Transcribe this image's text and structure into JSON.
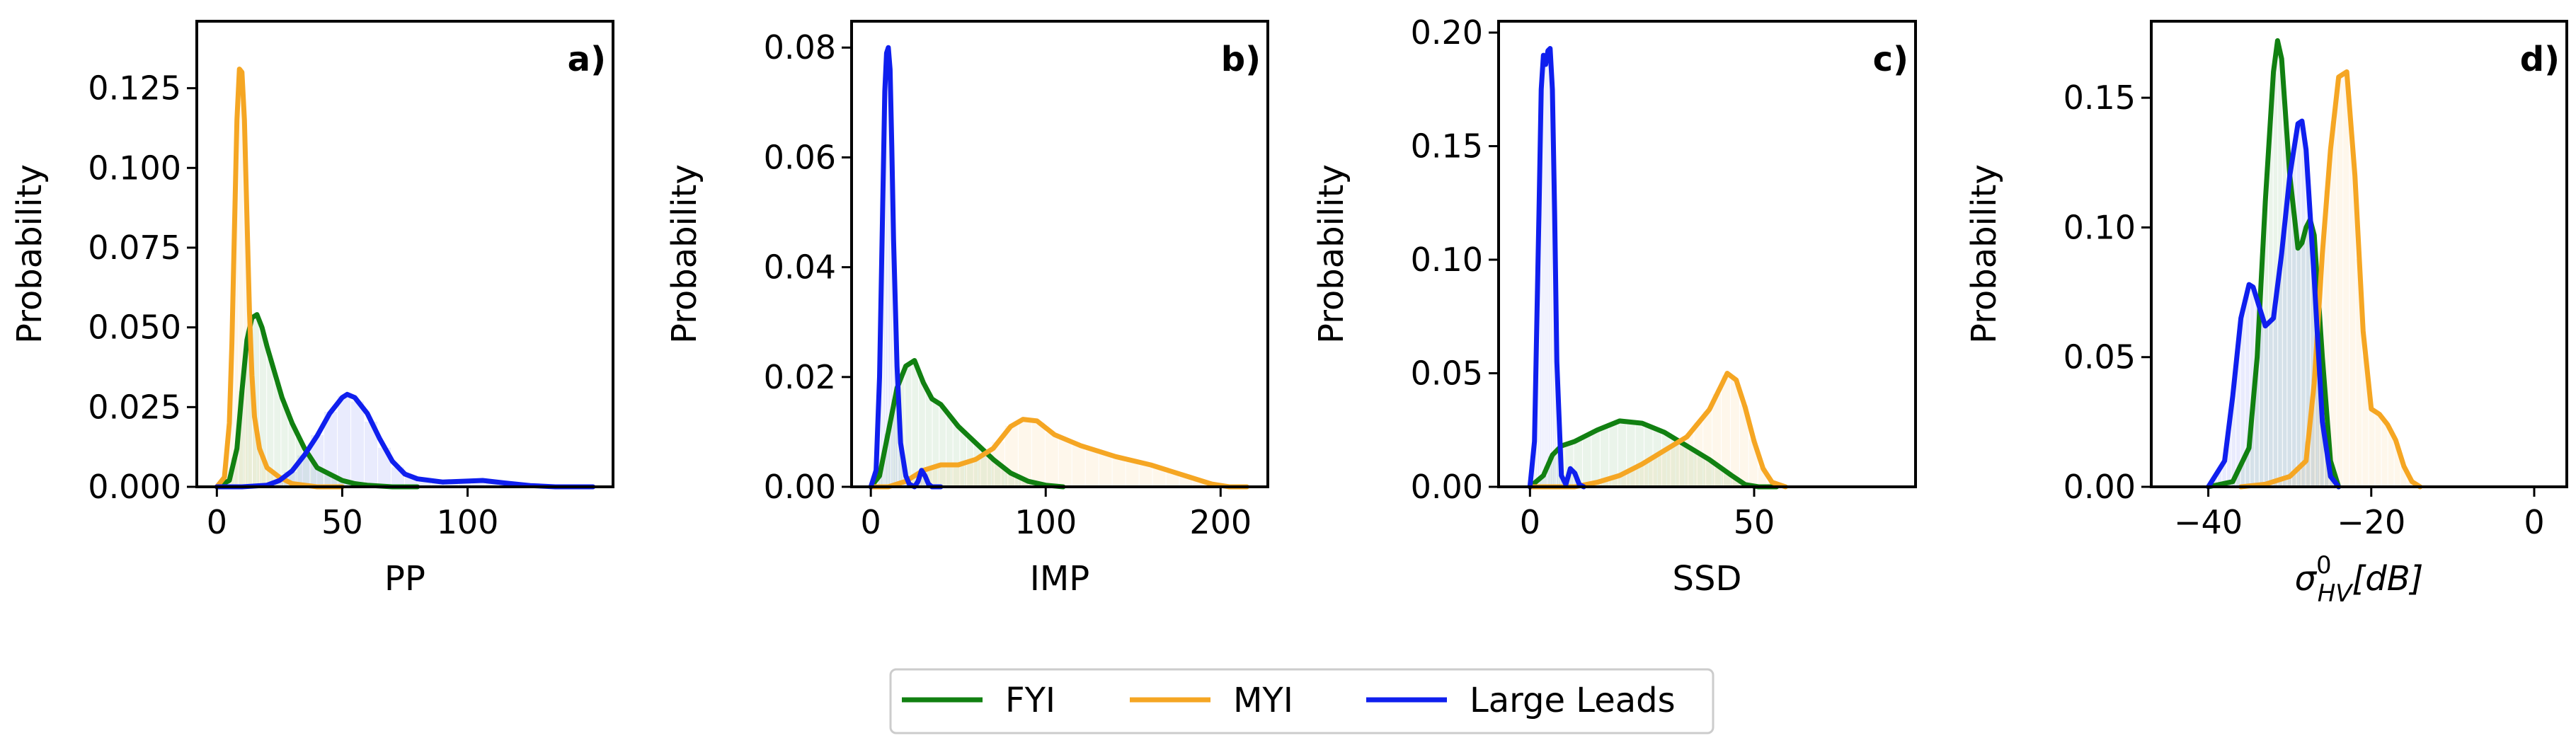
{
  "figure": {
    "legend_position": "bottom-center"
  },
  "legend": [
    {
      "name": "FYI",
      "color": "#118011"
    },
    {
      "name": "MYI",
      "color": "#f5a623"
    },
    {
      "name": "Large Leads",
      "color": "#0f1fee"
    }
  ],
  "chart_data": [
    {
      "type": "area",
      "panel": "a)",
      "xlabel": "PP",
      "ylabel": "Probability",
      "xlim": [
        -8,
        158
      ],
      "ylim": [
        0,
        0.146
      ],
      "xticks": [
        0,
        50,
        100
      ],
      "yticks": [
        0.0,
        0.025,
        0.05,
        0.075,
        0.1,
        0.125
      ],
      "ytick_labels": [
        "0.000",
        "0.025",
        "0.050",
        "0.075",
        "0.100",
        "0.125"
      ],
      "series": [
        {
          "name": "FYI",
          "x": [
            0,
            5,
            8,
            10,
            12,
            14,
            16,
            18,
            20,
            23,
            26,
            30,
            35,
            40,
            45,
            50,
            55,
            60,
            70,
            80
          ],
          "y": [
            0,
            0.002,
            0.012,
            0.03,
            0.046,
            0.053,
            0.054,
            0.05,
            0.044,
            0.036,
            0.028,
            0.02,
            0.012,
            0.006,
            0.004,
            0.002,
            0.001,
            0.0005,
            0,
            0
          ]
        },
        {
          "name": "MYI",
          "x": [
            0,
            3,
            5,
            6,
            7,
            8,
            9,
            10,
            11,
            12,
            13,
            14,
            15,
            17,
            20,
            25,
            30,
            40,
            50
          ],
          "y": [
            0,
            0.003,
            0.02,
            0.045,
            0.08,
            0.115,
            0.131,
            0.13,
            0.115,
            0.085,
            0.055,
            0.035,
            0.022,
            0.012,
            0.006,
            0.003,
            0.001,
            0,
            0
          ]
        },
        {
          "name": "Large Leads",
          "x": [
            0,
            10,
            20,
            25,
            30,
            35,
            40,
            45,
            50,
            52,
            55,
            60,
            65,
            70,
            75,
            80,
            90,
            100,
            106,
            115,
            125,
            135,
            150
          ],
          "y": [
            0,
            0,
            0.0005,
            0.002,
            0.005,
            0.01,
            0.016,
            0.023,
            0.028,
            0.029,
            0.028,
            0.023,
            0.015,
            0.008,
            0.004,
            0.0025,
            0.0015,
            0.0018,
            0.002,
            0.0012,
            0.0004,
            0,
            0
          ]
        }
      ]
    },
    {
      "type": "area",
      "panel": "b)",
      "xlabel": "IMP",
      "ylabel": "Probability",
      "xlim": [
        -11,
        227
      ],
      "ylim": [
        0,
        0.0848
      ],
      "xticks": [
        0,
        100,
        200
      ],
      "yticks": [
        0.0,
        0.02,
        0.04,
        0.06,
        0.08
      ],
      "ytick_labels": [
        "0.00",
        "0.02",
        "0.04",
        "0.06",
        "0.08"
      ],
      "series": [
        {
          "name": "FYI",
          "x": [
            0,
            5,
            10,
            15,
            20,
            25,
            30,
            35,
            40,
            50,
            60,
            70,
            80,
            90,
            100,
            110
          ],
          "y": [
            0,
            0.002,
            0.01,
            0.018,
            0.022,
            0.023,
            0.019,
            0.016,
            0.015,
            0.011,
            0.008,
            0.005,
            0.0025,
            0.001,
            0.0003,
            0
          ]
        },
        {
          "name": "MYI",
          "x": [
            0,
            10,
            20,
            30,
            40,
            50,
            60,
            70,
            80,
            87,
            95,
            105,
            120,
            140,
            160,
            180,
            195,
            205,
            215
          ],
          "y": [
            0,
            0,
            0.001,
            0.003,
            0.004,
            0.004,
            0.005,
            0.007,
            0.011,
            0.0123,
            0.012,
            0.0095,
            0.0075,
            0.0055,
            0.004,
            0.002,
            0.0005,
            0,
            0
          ]
        },
        {
          "name": "Large Leads",
          "x": [
            0,
            3,
            5,
            7,
            8,
            9,
            10,
            11,
            12,
            13,
            15,
            17,
            20,
            22,
            25,
            27,
            29,
            31,
            33,
            35,
            40
          ],
          "y": [
            0,
            0.003,
            0.02,
            0.055,
            0.072,
            0.079,
            0.08,
            0.076,
            0.062,
            0.045,
            0.022,
            0.008,
            0.002,
            0.0005,
            0,
            0.001,
            0.003,
            0.002,
            0.0005,
            0,
            0
          ]
        }
      ]
    },
    {
      "type": "area",
      "panel": "c)",
      "xlabel": "SSD",
      "ylabel": "Probability",
      "xlim": [
        -7,
        86
      ],
      "ylim": [
        0,
        0.205
      ],
      "xticks": [
        0,
        50
      ],
      "yticks": [
        0.0,
        0.05,
        0.1,
        0.15,
        0.2
      ],
      "ytick_labels": [
        "0.00",
        "0.05",
        "0.10",
        "0.15",
        "0.20"
      ],
      "series": [
        {
          "name": "FYI",
          "x": [
            0,
            3,
            5,
            7,
            10,
            15,
            20,
            25,
            30,
            35,
            40,
            45,
            48,
            51,
            55
          ],
          "y": [
            0,
            0.005,
            0.014,
            0.018,
            0.02,
            0.025,
            0.029,
            0.028,
            0.024,
            0.018,
            0.012,
            0.005,
            0.001,
            0,
            0
          ]
        },
        {
          "name": "MYI",
          "x": [
            0,
            10,
            15,
            20,
            25,
            30,
            35,
            40,
            43,
            44,
            46,
            48,
            50,
            52,
            54,
            57
          ],
          "y": [
            0,
            0,
            0.002,
            0.005,
            0.01,
            0.016,
            0.022,
            0.034,
            0.046,
            0.05,
            0.047,
            0.035,
            0.02,
            0.008,
            0.002,
            0
          ]
        },
        {
          "name": "Large Leads",
          "x": [
            0,
            1,
            2,
            2.5,
            3,
            3.5,
            4,
            4.5,
            5,
            5.5,
            6,
            7,
            8,
            9,
            10,
            11,
            12
          ],
          "y": [
            0,
            0.02,
            0.12,
            0.175,
            0.19,
            0.186,
            0.192,
            0.193,
            0.175,
            0.12,
            0.055,
            0.005,
            0.001,
            0.008,
            0.006,
            0.001,
            0
          ]
        }
      ]
    },
    {
      "type": "area",
      "panel": "d)",
      "xlabel": "σ⁰HV[dB]",
      "ylabel": "Probability",
      "xlim": [
        -47,
        4
      ],
      "ylim": [
        0,
        0.1795
      ],
      "xticks": [
        -40,
        -20,
        0
      ],
      "xtick_labels": [
        "−40",
        "−20",
        "0"
      ],
      "yticks": [
        0.0,
        0.05,
        0.1,
        0.15
      ],
      "ytick_labels": [
        "0.00",
        "0.05",
        "0.10",
        "0.15"
      ],
      "series": [
        {
          "name": "FYI",
          "x": [
            -40,
            -37,
            -35,
            -34,
            -33,
            -32,
            -31.5,
            -31,
            -30,
            -29,
            -28.5,
            -28,
            -27.5,
            -27,
            -26,
            -25,
            -24
          ],
          "y": [
            0,
            0.002,
            0.015,
            0.05,
            0.11,
            0.16,
            0.172,
            0.165,
            0.12,
            0.092,
            0.094,
            0.1,
            0.103,
            0.097,
            0.05,
            0.01,
            0
          ]
        },
        {
          "name": "MYI",
          "x": [
            -36,
            -33,
            -30,
            -28,
            -27,
            -26,
            -25,
            -24,
            -23,
            -22,
            -21,
            -20,
            -19,
            -18,
            -17,
            -16,
            -15,
            -14
          ],
          "y": [
            0,
            0.001,
            0.004,
            0.01,
            0.04,
            0.09,
            0.13,
            0.158,
            0.16,
            0.12,
            0.06,
            0.03,
            0.028,
            0.024,
            0.018,
            0.008,
            0.002,
            0
          ]
        },
        {
          "name": "Large Leads",
          "x": [
            -40,
            -38,
            -37,
            -36,
            -35,
            -34.5,
            -34,
            -33,
            -32,
            -31,
            -30,
            -29,
            -28.5,
            -28,
            -27,
            -26,
            -25,
            -24
          ],
          "y": [
            0,
            0.01,
            0.035,
            0.065,
            0.078,
            0.077,
            0.072,
            0.062,
            0.065,
            0.09,
            0.12,
            0.14,
            0.141,
            0.13,
            0.08,
            0.025,
            0.004,
            0
          ]
        }
      ]
    }
  ]
}
